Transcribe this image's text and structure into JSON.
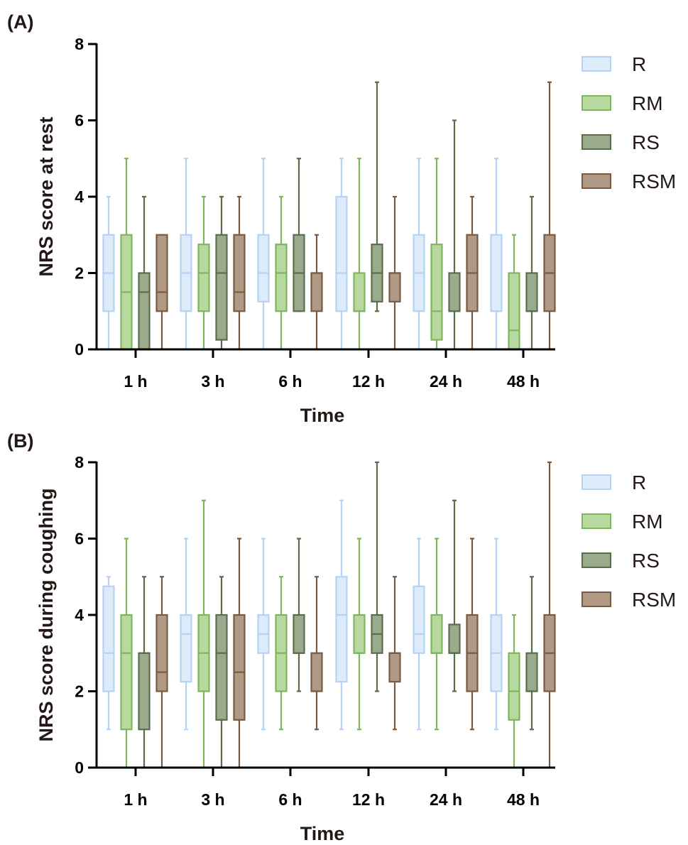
{
  "colors": {
    "R": {
      "fill": "#deebfb",
      "stroke": "#b5d3f4"
    },
    "RM": {
      "fill": "#b7d89f",
      "stroke": "#7fb65d"
    },
    "RS": {
      "fill": "#9aaa8d",
      "stroke": "#5a6d4a"
    },
    "RSM": {
      "fill": "#b09a86",
      "stroke": "#7a5a42"
    },
    "axis": "#000000",
    "title_text": "#231815"
  },
  "chart_data": [
    {
      "type": "box",
      "panel_label": "(A)",
      "xlabel": "Time",
      "ylabel": "NRS score at rest",
      "ylim": [
        0,
        8
      ],
      "yticks": [
        "0",
        "2",
        "4",
        "6",
        "8"
      ],
      "categories": [
        "1 h",
        "3 h",
        "6 h",
        "12 h",
        "24 h",
        "48 h"
      ],
      "legend": {
        "position": "right",
        "entries": [
          "R",
          "RM",
          "RS",
          "RSM"
        ]
      },
      "series": [
        {
          "name": "R",
          "values": [
            {
              "min": 0,
              "q1": 1,
              "median": 2,
              "q3": 3,
              "max": 4
            },
            {
              "min": 0,
              "q1": 1,
              "median": 2,
              "q3": 3,
              "max": 5
            },
            {
              "min": 0,
              "q1": 1.25,
              "median": 2,
              "q3": 3,
              "max": 5
            },
            {
              "min": 0,
              "q1": 1,
              "median": 2,
              "q3": 4,
              "max": 5
            },
            {
              "min": 0,
              "q1": 1,
              "median": 2,
              "q3": 3,
              "max": 5
            },
            {
              "min": 0,
              "q1": 1,
              "median": 1,
              "q3": 3,
              "max": 5
            }
          ]
        },
        {
          "name": "RM",
          "values": [
            {
              "min": 0,
              "q1": 0,
              "median": 1.5,
              "q3": 3,
              "max": 5
            },
            {
              "min": 0,
              "q1": 1,
              "median": 2,
              "q3": 2.75,
              "max": 4
            },
            {
              "min": 0,
              "q1": 1,
              "median": 2,
              "q3": 2.75,
              "max": 4
            },
            {
              "min": 0,
              "q1": 1,
              "median": 1,
              "q3": 2,
              "max": 5
            },
            {
              "min": 0,
              "q1": 0.25,
              "median": 1,
              "q3": 2.75,
              "max": 5
            },
            {
              "min": 0,
              "q1": 0,
              "median": 0.5,
              "q3": 2,
              "max": 3
            }
          ]
        },
        {
          "name": "RS",
          "values": [
            {
              "min": 0,
              "q1": 0,
              "median": 1.5,
              "q3": 2,
              "max": 4
            },
            {
              "min": 0,
              "q1": 0.25,
              "median": 2,
              "q3": 3,
              "max": 4
            },
            {
              "min": 1,
              "q1": 1,
              "median": 2,
              "q3": 3,
              "max": 5
            },
            {
              "min": 1,
              "q1": 1.25,
              "median": 2,
              "q3": 2.75,
              "max": 7
            },
            {
              "min": 0,
              "q1": 1,
              "median": 1,
              "q3": 2,
              "max": 6
            },
            {
              "min": 0,
              "q1": 1,
              "median": 1,
              "q3": 2,
              "max": 4
            }
          ]
        },
        {
          "name": "RSM",
          "values": [
            {
              "min": 0,
              "q1": 1,
              "median": 1.5,
              "q3": 3,
              "max": 3
            },
            {
              "min": 0,
              "q1": 1,
              "median": 1.5,
              "q3": 3,
              "max": 4
            },
            {
              "min": 0,
              "q1": 1,
              "median": 2,
              "q3": 2,
              "max": 3
            },
            {
              "min": 0,
              "q1": 1.25,
              "median": 2,
              "q3": 2,
              "max": 4
            },
            {
              "min": 0,
              "q1": 1,
              "median": 2,
              "q3": 3,
              "max": 4
            },
            {
              "min": 0,
              "q1": 1,
              "median": 2,
              "q3": 3,
              "max": 7
            }
          ]
        }
      ]
    },
    {
      "type": "box",
      "panel_label": "(B)",
      "xlabel": "Time",
      "ylabel": "NRS score during coughing",
      "ylim": [
        0,
        8
      ],
      "yticks": [
        "0",
        "2",
        "4",
        "6",
        "8"
      ],
      "categories": [
        "1 h",
        "3 h",
        "6 h",
        "12 h",
        "24 h",
        "48 h"
      ],
      "legend": {
        "position": "right",
        "entries": [
          "R",
          "RM",
          "RS",
          "RSM"
        ]
      },
      "series": [
        {
          "name": "R",
          "values": [
            {
              "min": 1,
              "q1": 2,
              "median": 3,
              "q3": 4.75,
              "max": 5
            },
            {
              "min": 1,
              "q1": 2.25,
              "median": 3.5,
              "q3": 4,
              "max": 6
            },
            {
              "min": 1,
              "q1": 3,
              "median": 3.5,
              "q3": 4,
              "max": 6
            },
            {
              "min": 1,
              "q1": 2.25,
              "median": 4,
              "q3": 5,
              "max": 7
            },
            {
              "min": 1,
              "q1": 3,
              "median": 3.5,
              "q3": 4.75,
              "max": 6
            },
            {
              "min": 1,
              "q1": 2,
              "median": 3,
              "q3": 4,
              "max": 6
            }
          ]
        },
        {
          "name": "RM",
          "values": [
            {
              "min": 0,
              "q1": 1,
              "median": 3,
              "q3": 4,
              "max": 6
            },
            {
              "min": 0,
              "q1": 2,
              "median": 3,
              "q3": 4,
              "max": 7
            },
            {
              "min": 1,
              "q1": 2,
              "median": 3,
              "q3": 4,
              "max": 5
            },
            {
              "min": 1,
              "q1": 3,
              "median": 3,
              "q3": 4,
              "max": 6
            },
            {
              "min": 1,
              "q1": 3,
              "median": 3,
              "q3": 4,
              "max": 6
            },
            {
              "min": 0,
              "q1": 1.25,
              "median": 2,
              "q3": 3,
              "max": 4
            }
          ]
        },
        {
          "name": "RS",
          "values": [
            {
              "min": 0,
              "q1": 1,
              "median": 3,
              "q3": 3,
              "max": 5
            },
            {
              "min": 0,
              "q1": 1.25,
              "median": 3,
              "q3": 4,
              "max": 5
            },
            {
              "min": 2,
              "q1": 3,
              "median": 3,
              "q3": 4,
              "max": 6
            },
            {
              "min": 2,
              "q1": 3,
              "median": 3.5,
              "q3": 4,
              "max": 8
            },
            {
              "min": 2,
              "q1": 3,
              "median": 3,
              "q3": 3.75,
              "max": 7
            },
            {
              "min": 1,
              "q1": 2,
              "median": 2,
              "q3": 3,
              "max": 5
            }
          ]
        },
        {
          "name": "RSM",
          "values": [
            {
              "min": 0,
              "q1": 2,
              "median": 2.5,
              "q3": 4,
              "max": 5
            },
            {
              "min": 0,
              "q1": 1.25,
              "median": 2.5,
              "q3": 4,
              "max": 6
            },
            {
              "min": 1,
              "q1": 2,
              "median": 2,
              "q3": 3,
              "max": 5
            },
            {
              "min": 1,
              "q1": 2.25,
              "median": 3,
              "q3": 3,
              "max": 5
            },
            {
              "min": 1,
              "q1": 2,
              "median": 3,
              "q3": 4,
              "max": 6
            },
            {
              "min": 0,
              "q1": 2,
              "median": 3,
              "q3": 4,
              "max": 8
            }
          ]
        }
      ]
    }
  ]
}
